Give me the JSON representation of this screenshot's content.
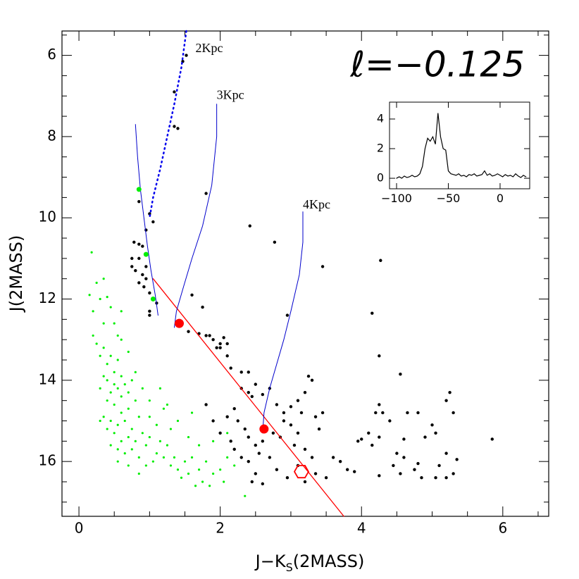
{
  "chart_data": [
    {
      "type": "scatter",
      "title": "ℓ=−0.125",
      "ylabel": "J(2MASS)",
      "xlabel": [
        "J−K",
        "S",
        "(2MASS)"
      ],
      "xlim": [
        -0.24,
        6.65
      ],
      "ylim": [
        17.35,
        5.4
      ],
      "xticks": [
        0,
        2,
        4,
        6
      ],
      "yticks": [
        6,
        8,
        10,
        12,
        14,
        16
      ],
      "xminorticks": [
        0.5,
        1,
        1.5,
        2.5,
        3,
        3.5,
        4.5,
        5,
        5.5,
        6.5
      ],
      "yminorticks": [
        5.5,
        6.5,
        7,
        7.5,
        8.5,
        9,
        9.5,
        10.5,
        11,
        11.5,
        12.5,
        13,
        13.5,
        14.5,
        15,
        15.5,
        16.5,
        17
      ],
      "annotations": [
        {
          "text": "2Kpc",
          "x": 1.65,
          "y": 5.85
        },
        {
          "text": "3Kpc",
          "x": 1.95,
          "y": 7.0
        },
        {
          "text": "4Kpc",
          "x": 3.17,
          "y": 9.7
        }
      ],
      "series": [
        {
          "mode": "markers",
          "marker": "dot",
          "color": "#00ee00",
          "size": 1.6,
          "x": [
            0.18,
            0.15,
            0.2,
            0.25,
            0.3,
            0.35,
            0.4,
            0.45,
            0.35,
            0.2,
            0.25,
            0.3,
            0.35,
            0.4,
            0.45,
            0.5,
            0.55,
            0.6,
            0.5,
            0.45,
            0.4,
            0.35,
            0.3,
            0.55,
            0.6,
            0.65,
            0.7,
            0.75,
            0.8,
            0.7,
            0.6,
            0.5,
            0.4,
            0.35,
            0.45,
            0.55,
            0.65,
            0.75,
            0.85,
            0.9,
            0.8,
            0.7,
            0.6,
            0.5,
            0.4,
            0.45,
            0.55,
            0.65,
            0.75,
            0.85,
            0.95,
            1.0,
            1.1,
            1.05,
            0.95,
            1.15,
            1.2,
            1.3,
            1.25,
            1.35,
            1.4,
            1.5,
            1.45,
            1.55,
            1.6,
            1.7,
            1.75,
            1.8,
            1.9,
            1.85,
            2.0,
            2.05,
            2.1,
            1.65,
            2.35,
            1.0,
            1.1,
            1.2,
            1.3,
            1.0,
            0.9,
            0.8,
            0.7,
            0.6,
            1.15,
            1.25,
            1.4,
            1.55,
            1.7,
            1.9,
            2.1,
            2.2,
            1.6,
            0.5,
            0.6,
            0.3,
            0.55,
            0.7,
            0.85,
            0.55
          ],
          "values": [
            10.85,
            11.9,
            12.3,
            11.6,
            12.0,
            11.5,
            11.95,
            12.2,
            12.6,
            12.9,
            13.1,
            13.4,
            13.2,
            13.6,
            13.4,
            13.8,
            13.5,
            13.9,
            14.1,
            14.3,
            14.0,
            13.9,
            14.2,
            14.2,
            14.4,
            14.1,
            14.3,
            14.0,
            14.5,
            14.7,
            14.8,
            14.6,
            14.5,
            14.9,
            15.0,
            15.1,
            15.0,
            15.2,
            14.9,
            15.3,
            15.5,
            15.4,
            15.5,
            15.3,
            15.2,
            15.6,
            15.7,
            15.8,
            15.7,
            15.9,
            15.6,
            15.4,
            15.8,
            16.0,
            16.1,
            15.5,
            15.9,
            16.1,
            15.6,
            15.9,
            16.2,
            16.0,
            16.4,
            16.3,
            15.9,
            16.2,
            16.5,
            16.0,
            16.3,
            16.6,
            16.2,
            16.5,
            15.9,
            16.6,
            16.85,
            14.9,
            15.1,
            14.7,
            15.2,
            14.5,
            14.2,
            13.8,
            13.3,
            13.0,
            14.2,
            14.6,
            15.0,
            15.4,
            15.6,
            15.5,
            15.3,
            16.1,
            14.8,
            12.6,
            12.3,
            15.0,
            16.0,
            16.1,
            16.3,
            12.9
          ]
        },
        {
          "mode": "markers",
          "marker": "dot",
          "color": "#000000",
          "size": 2.2,
          "x": [
            1.52,
            1.47,
            1.35,
            1.35,
            1.4,
            1.8,
            0.85,
            1.0,
            1.05,
            0.95,
            0.9,
            0.85,
            0.78,
            0.75,
            0.75,
            0.8,
            0.9,
            0.95,
            0.85,
            0.92,
            0.95,
            1.0,
            1.1,
            0.85,
            1.0,
            1.0,
            1.6,
            1.75,
            1.55,
            1.7,
            1.8,
            1.9,
            1.85,
            2.0,
            1.95,
            2.05,
            2.1,
            2.1,
            2.15,
            2.3,
            2.4,
            2.0,
            2.42,
            2.77,
            3.45,
            4.27,
            4.15,
            4.25,
            4.55,
            2.95,
            2.3,
            2.4,
            2.45,
            2.5,
            2.6,
            2.7,
            2.8,
            2.9,
            3.0,
            3.1,
            3.2,
            3.3,
            3.25,
            3.15,
            3.35,
            3.45,
            3.4,
            2.2,
            2.25,
            2.35,
            2.4,
            2.5,
            2.55,
            2.6,
            2.7,
            2.75,
            2.85,
            2.9,
            3.0,
            3.05,
            3.1,
            3.2,
            3.3,
            2.2,
            2.3,
            2.4,
            2.5,
            2.6,
            2.45,
            2.8,
            2.95,
            3.1,
            3.2,
            3.35,
            3.5,
            3.6,
            3.7,
            3.8,
            3.9,
            3.95,
            4.0,
            4.1,
            4.15,
            4.25,
            4.3,
            4.2,
            4.4,
            4.25,
            4.65,
            4.8,
            4.6,
            4.9,
            5.0,
            5.05,
            5.2,
            5.25,
            5.3,
            5.2,
            5.1,
            5.05,
            5.2,
            5.3,
            5.35,
            5.85,
            4.75,
            4.6,
            4.45,
            4.25,
            4.55,
            4.85,
            4.8,
            4.5,
            1.8,
            1.9,
            2.0,
            2.1,
            2.15
          ],
          "values": [
            6.0,
            6.15,
            6.9,
            7.75,
            7.8,
            9.4,
            9.6,
            9.9,
            10.1,
            10.3,
            10.7,
            10.65,
            10.6,
            11.0,
            11.2,
            11.3,
            11.4,
            11.2,
            11.0,
            11.7,
            11.5,
            11.85,
            12.1,
            11.6,
            12.4,
            12.3,
            11.9,
            12.2,
            12.8,
            12.85,
            12.9,
            13.0,
            12.9,
            13.1,
            13.2,
            12.95,
            13.1,
            13.4,
            13.7,
            13.8,
            13.8,
            13.2,
            10.2,
            10.6,
            11.2,
            11.05,
            12.35,
            13.4,
            13.85,
            12.4,
            14.2,
            14.3,
            14.4,
            14.1,
            14.35,
            14.2,
            14.6,
            14.8,
            14.65,
            14.5,
            14.3,
            14.0,
            13.9,
            14.8,
            14.9,
            14.8,
            15.2,
            14.7,
            15.0,
            15.2,
            15.4,
            15.6,
            15.8,
            15.5,
            15.9,
            15.3,
            15.4,
            15.0,
            15.1,
            15.6,
            15.3,
            15.7,
            15.9,
            15.7,
            15.9,
            16.0,
            16.3,
            16.55,
            16.5,
            16.2,
            16.4,
            16.1,
            16.5,
            16.3,
            16.4,
            15.9,
            16.0,
            16.2,
            16.25,
            15.5,
            15.45,
            15.3,
            15.6,
            15.4,
            14.8,
            14.8,
            15.0,
            14.6,
            14.8,
            14.8,
            15.45,
            15.4,
            15.1,
            15.3,
            14.5,
            14.3,
            14.8,
            15.8,
            16.1,
            16.4,
            16.4,
            16.3,
            15.95,
            15.45,
            16.2,
            15.9,
            16.1,
            16.35,
            16.3,
            16.4,
            16.05,
            15.8,
            14.6,
            15.0,
            15.3,
            14.9,
            15.5
          ]
        },
        {
          "mode": "line",
          "color": "#ff0000",
          "width": 1.3,
          "x": [
            1.05,
            3.75
          ],
          "values": [
            11.5,
            17.35
          ]
        },
        {
          "mode": "line",
          "dash": true,
          "color": "#0000ee",
          "width": 2.5,
          "x": [
            1.52,
            1.45,
            1.35,
            1.25,
            1.15,
            1.05,
            1.0
          ],
          "values": [
            5.4,
            6.3,
            7.2,
            8.0,
            8.8,
            9.5,
            10.0
          ]
        },
        {
          "mode": "line",
          "color": "#0000cc",
          "width": 1,
          "x": [
            0.8,
            0.83,
            0.87,
            0.92,
            0.97,
            1.02,
            1.08,
            1.12
          ],
          "values": [
            7.7,
            8.5,
            9.3,
            10.0,
            10.7,
            11.3,
            11.9,
            12.4
          ]
        },
        {
          "mode": "line",
          "color": "#0000cc",
          "width": 1,
          "x": [
            1.95,
            1.95,
            1.88,
            1.75,
            1.6,
            1.48,
            1.38,
            1.35
          ],
          "values": [
            7.2,
            8.0,
            9.2,
            10.2,
            11.0,
            11.7,
            12.3,
            12.7
          ]
        },
        {
          "mode": "line",
          "color": "#0000cc",
          "width": 1,
          "x": [
            3.17,
            3.17,
            3.12,
            3.0,
            2.9,
            2.8,
            2.7,
            2.62,
            2.6
          ],
          "values": [
            9.85,
            10.6,
            11.4,
            12.3,
            13.0,
            13.6,
            14.2,
            14.8,
            15.3
          ]
        },
        {
          "mode": "markers",
          "marker": "dot",
          "color": "#00ee00",
          "size": 3.5,
          "x": [
            0.85,
            0.95,
            1.05
          ],
          "values": [
            9.3,
            10.9,
            12.0
          ]
        },
        {
          "mode": "markers",
          "marker": "dot",
          "color": "#ff0000",
          "size": 6.5,
          "x": [
            1.42,
            2.62
          ],
          "values": [
            12.6,
            15.2
          ]
        },
        {
          "mode": "markers",
          "marker": "hexagon",
          "color": "#ff0000",
          "size": 10,
          "x": [
            3.15
          ],
          "values": [
            16.25
          ]
        }
      ]
    },
    {
      "type": "line",
      "xlim": [
        -106.8,
        28.6
      ],
      "ylim": [
        -0.71,
        5.14
      ],
      "xticks": [
        {
          "value": -100,
          "label": "−100"
        },
        {
          "value": -50,
          "label": "−50"
        },
        0
      ],
      "yticks": [
        0,
        2,
        4
      ],
      "series": [
        {
          "color": "#000000",
          "x": [
            -100,
            -97.5,
            -95,
            -92.5,
            -90,
            -87.5,
            -85,
            -82.5,
            -80,
            -77.5,
            -75,
            -72.5,
            -70,
            -67.5,
            -65,
            -62.5,
            -60,
            -57.5,
            -55,
            -52.5,
            -50,
            -47.5,
            -45,
            -42.5,
            -40,
            -37.5,
            -35,
            -32.5,
            -30,
            -27.5,
            -25,
            -22.5,
            -20,
            -17.5,
            -15,
            -12.5,
            -10,
            -7.5,
            -5,
            -2.5,
            0,
            2.5,
            5,
            7.5,
            10,
            12.5,
            15,
            17.5,
            20,
            22.5,
            25
          ],
          "values": [
            0.0,
            0.1,
            0.0,
            0.15,
            0.05,
            0.1,
            0.2,
            0.1,
            0.15,
            0.3,
            0.8,
            2.0,
            2.7,
            2.5,
            2.8,
            2.3,
            4.4,
            2.8,
            2.0,
            1.9,
            0.5,
            0.3,
            0.25,
            0.2,
            0.3,
            0.15,
            0.2,
            0.1,
            0.25,
            0.2,
            0.3,
            0.15,
            0.2,
            0.25,
            0.5,
            0.2,
            0.3,
            0.15,
            0.2,
            0.3,
            0.2,
            0.1,
            0.25,
            0.15,
            0.2,
            0.1,
            0.3,
            0.15,
            0.05,
            0.2,
            0.1
          ]
        }
      ]
    }
  ]
}
